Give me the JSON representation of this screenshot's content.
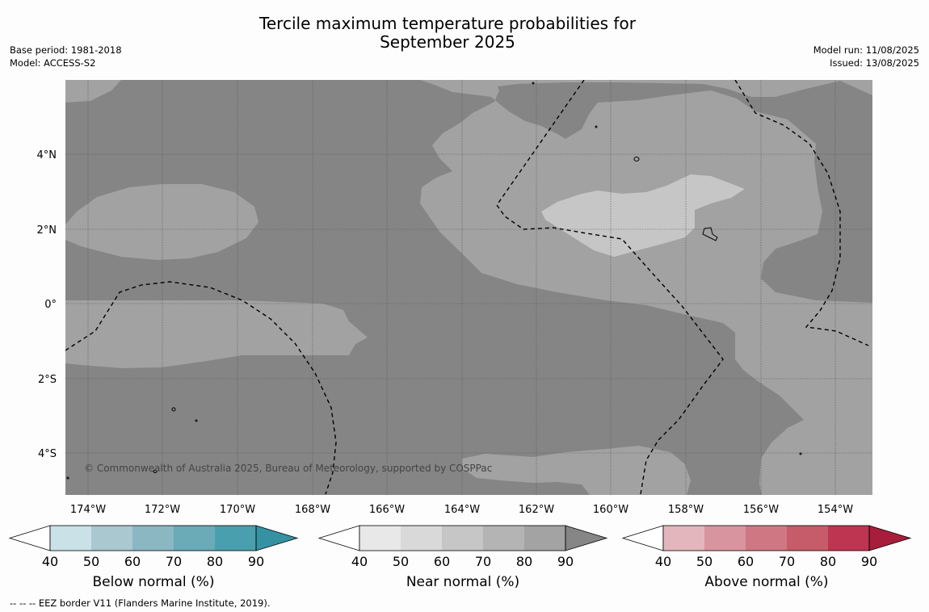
{
  "title": {
    "line1": "Tercile maximum temperature probabilities for",
    "line2": "September 2025"
  },
  "meta": {
    "base_period": "Base period: 1981-2018",
    "model": "Model: ACCESS-S2",
    "model_run": "Model run: 11/08/2025",
    "issued": "Issued: 13/08/2025"
  },
  "map": {
    "lon_labels": [
      "174°W",
      "172°W",
      "170°W",
      "168°W",
      "166°W",
      "164°W",
      "162°W",
      "160°W",
      "158°W",
      "156°W",
      "154°W"
    ],
    "lat_labels": [
      "4°N",
      "2°N",
      "0°",
      "2°S",
      "4°S"
    ],
    "credit": "© Commonwealth of Australia 2025, Bureau of Meteorology, supported by COSPPac",
    "colors": {
      "near_70_80": "#b3b3b3",
      "near_80_90": "#a2a2a2",
      "near_90": "#858585"
    }
  },
  "colorbars": [
    {
      "title": "Below normal (%)",
      "labels": [
        "40",
        "50",
        "60",
        "70",
        "80",
        "90"
      ],
      "colors": [
        "#ffffff",
        "#c9e1e7",
        "#a9c8cf",
        "#8bb7c3",
        "#6baab7",
        "#4a9fae",
        "#3592a3"
      ]
    },
    {
      "title": "Near normal (%)",
      "labels": [
        "40",
        "50",
        "60",
        "70",
        "80",
        "90"
      ],
      "colors": [
        "#ffffff",
        "#e8e8e8",
        "#d9d9d9",
        "#c6c6c6",
        "#b4b4b4",
        "#a3a3a3",
        "#868686"
      ]
    },
    {
      "title": "Above normal (%)",
      "labels": [
        "40",
        "50",
        "60",
        "70",
        "80",
        "90"
      ],
      "colors": [
        "#ffffff",
        "#e3b6bd",
        "#d9959f",
        "#cf7883",
        "#c65c69",
        "#bd3550",
        "#a91d3c"
      ]
    }
  ],
  "footer": "--  --  -- EEZ border V11 (Flanders Marine Institute, 2019)."
}
